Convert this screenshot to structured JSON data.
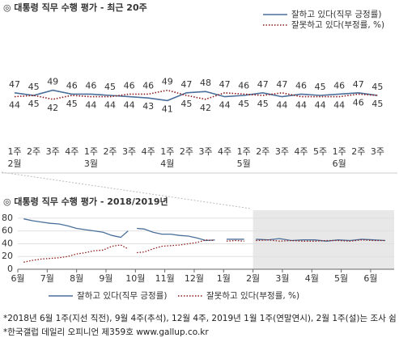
{
  "chart_data": [
    {
      "type": "line",
      "title": "◎  대통령 직무 수행 평가 - 최근 20주",
      "categories": [
        "1주",
        "2주",
        "3주",
        "4주",
        "1주",
        "2주",
        "3주",
        "4주",
        "1주",
        "2주",
        "3주",
        "4주",
        "1주",
        "2주",
        "3주",
        "4주",
        "5주",
        "1주",
        "2주",
        "3주"
      ],
      "month_labels": [
        "2월",
        null,
        null,
        null,
        "3월",
        null,
        null,
        null,
        "4월",
        null,
        null,
        null,
        "5월",
        null,
        null,
        null,
        null,
        "6월",
        null,
        null
      ],
      "series": [
        {
          "name": "잘하고 있다(직무 긍정률)",
          "color": "#4a6f9a",
          "label_color": "#4f80bd",
          "style": "solid",
          "values": [
            47,
            45,
            49,
            46,
            46,
            45,
            44,
            43,
            41,
            47,
            48,
            44,
            45,
            47,
            44,
            46,
            45,
            46,
            47,
            45
          ]
        },
        {
          "name": "잘못하고 있다(부정률, %)",
          "color": "#8b1a1a",
          "label_color": "#333333",
          "style": "dotted",
          "values": [
            44,
            45,
            42,
            45,
            44,
            44,
            46,
            46,
            49,
            45,
            42,
            47,
            46,
            45,
            47,
            44,
            44,
            44,
            46,
            45
          ]
        }
      ],
      "ylim": [
        0,
        100
      ]
    },
    {
      "type": "line",
      "title": "◎  대통령 직무 수행 평가 - 2018/2019년",
      "x": [
        0.2,
        0.5,
        0.8,
        1.1,
        1.4,
        1.7,
        2.0,
        2.3,
        2.6,
        2.9,
        3.2,
        3.5,
        3.75,
        3.9,
        4.05,
        4.3,
        4.6,
        4.9,
        5.2,
        5.5,
        5.8,
        6.1,
        6.4,
        6.7,
        6.85,
        7.1,
        7.4,
        7.7,
        7.85,
        8.1,
        8.5,
        8.9,
        9.3,
        9.7,
        10.1,
        10.5,
        10.9,
        11.3,
        11.7,
        12.1,
        12.5
      ],
      "series": [
        {
          "name": "잘하고 있다(직무 긍정률)",
          "color": "#4a6f9a",
          "style": "solid",
          "values": [
            79,
            76,
            74,
            72,
            71,
            68,
            64,
            62,
            60,
            58,
            53,
            50,
            60,
            null,
            64,
            63,
            58,
            55,
            55,
            53,
            52,
            49,
            45,
            46,
            null,
            47,
            47,
            47,
            null,
            47,
            46,
            48,
            45,
            46,
            46,
            44,
            46,
            45,
            47,
            46,
            45
          ]
        },
        {
          "name": "잘못하고 있다(부정률, %)",
          "color": "#8b1a1a",
          "style": "dotted",
          "values": [
            11,
            14,
            16,
            17,
            18,
            20,
            24,
            26,
            29,
            30,
            36,
            38,
            32,
            null,
            26,
            27,
            32,
            36,
            37,
            38,
            40,
            42,
            46,
            45,
            null,
            44,
            45,
            44,
            null,
            45,
            46,
            44,
            45,
            44,
            44,
            45,
            45,
            44,
            46,
            45,
            45
          ]
        }
      ],
      "xlim": [
        0,
        12.8
      ],
      "ylim": [
        0,
        90
      ],
      "xticks": [
        {
          "value": 0,
          "label": "6월"
        },
        {
          "value": 1,
          "label": "7월"
        },
        {
          "value": 2,
          "label": "8월"
        },
        {
          "value": 3,
          "label": "9월"
        },
        {
          "value": 4,
          "label": "10월"
        },
        {
          "value": 5,
          "label": "11월"
        },
        {
          "value": 6,
          "label": "12월"
        },
        {
          "value": 7,
          "label": "1월"
        },
        {
          "value": 8,
          "label": "2월"
        },
        {
          "value": 9,
          "label": "3월"
        },
        {
          "value": 10,
          "label": "4월"
        },
        {
          "value": 11,
          "label": "5월"
        },
        {
          "value": 12,
          "label": "6월"
        }
      ],
      "yticks": [
        0,
        20,
        40,
        60,
        80
      ],
      "highlight_range": [
        8,
        12.8
      ]
    }
  ],
  "footnotes": [
    "*2018년 6월 1주(지선 직전), 9월 4주(추석), 12월 4주, 2019년 1월 1주(연말연시), 2월 1주(설)는 조사 쉼",
    "*한국갤럽 데일리 오피니언 제359호 www.gallup.co.kr"
  ]
}
